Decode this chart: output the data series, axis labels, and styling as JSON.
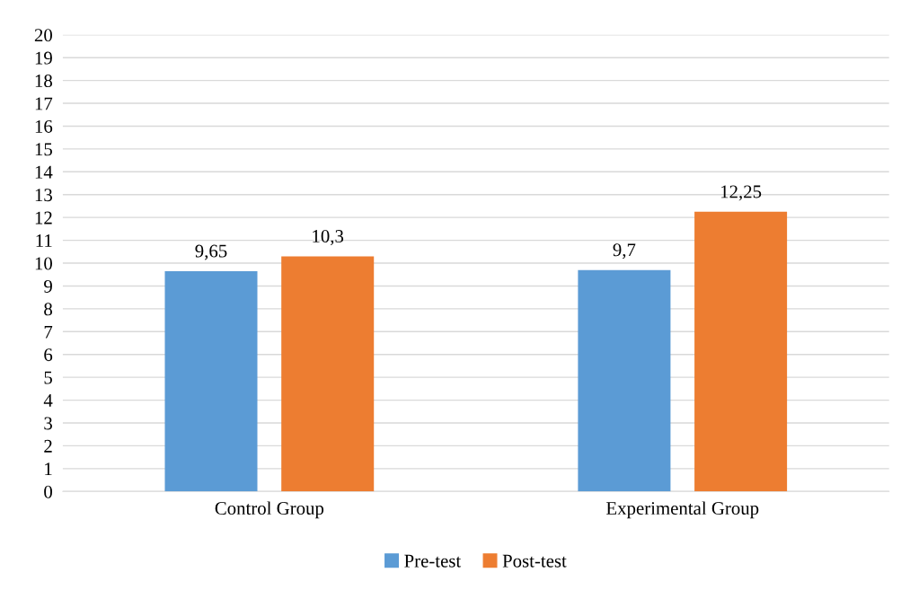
{
  "chart_data": {
    "type": "bar",
    "categories": [
      "Control Group",
      "Experimental Group"
    ],
    "series": [
      {
        "name": "Pre-test",
        "color": "#5b9bd5",
        "values": [
          9.65,
          9.7
        ],
        "value_labels": [
          "9,65",
          "9,7"
        ]
      },
      {
        "name": "Post-test",
        "color": "#ed7d31",
        "values": [
          10.3,
          12.25
        ],
        "value_labels": [
          "10,3",
          "12,25"
        ]
      }
    ],
    "ylim": [
      0,
      20
    ],
    "yticks": [
      0,
      1,
      2,
      3,
      4,
      5,
      6,
      7,
      8,
      9,
      10,
      11,
      12,
      13,
      14,
      15,
      16,
      17,
      18,
      19,
      20
    ],
    "grid": "y",
    "legend": "bottom"
  }
}
